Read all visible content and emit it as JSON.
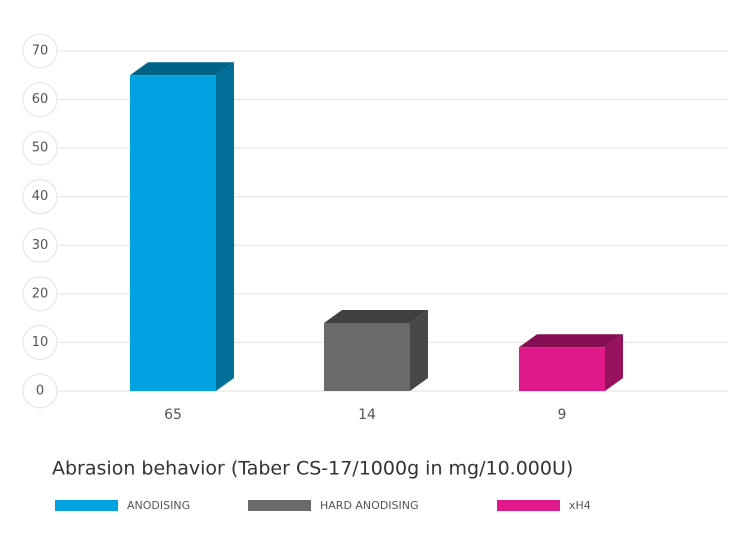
{
  "chart_data": {
    "type": "bar3d",
    "title": "Abrasion behavior (Taber CS-17/1000g in mg/10.000U)",
    "series": [
      {
        "name": "ANODISING",
        "color": "#00a3e0",
        "values": [
          65
        ]
      },
      {
        "name": "HARD ANODISING",
        "color": "#6a6a6c",
        "values": [
          14
        ]
      },
      {
        "name": "xH4",
        "color": "#e0198a",
        "values": [
          9
        ]
      }
    ],
    "ylim": [
      0,
      70
    ],
    "yticks": [
      0,
      10,
      20,
      30,
      40,
      50,
      60,
      70
    ],
    "grid": true
  }
}
